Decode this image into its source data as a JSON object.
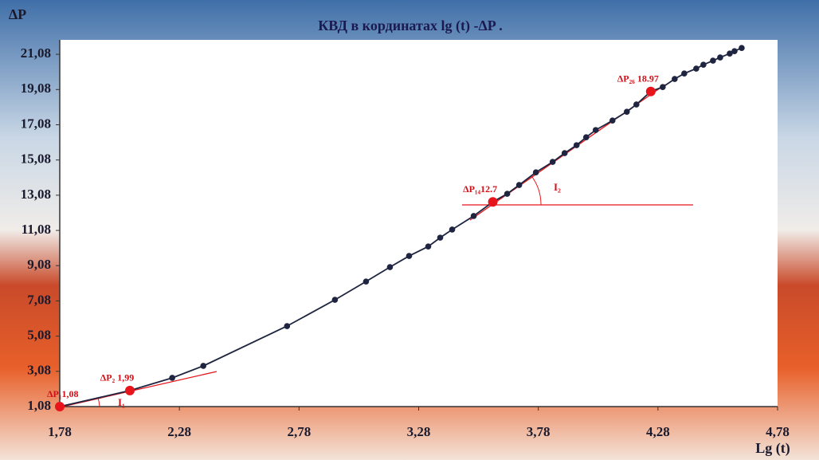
{
  "chart_data": {
    "type": "line",
    "title": "КВД в кординатах lg (t) -ΔP .",
    "y_label": "ΔP",
    "x_label": "Lg (t)",
    "x": [
      1.78,
      2.073,
      2.25,
      2.38,
      2.73,
      2.93,
      3.06,
      3.16,
      3.24,
      3.32,
      3.37,
      3.42,
      3.51,
      3.59,
      3.65,
      3.7,
      3.77,
      3.84,
      3.89,
      3.94,
      3.98,
      4.02,
      4.09,
      4.15,
      4.19,
      4.25,
      4.3,
      4.35,
      4.39,
      4.44,
      4.47,
      4.51,
      4.54,
      4.58,
      4.6,
      4.63
    ],
    "series": [
      {
        "color": "#1f2540",
        "highlight_color": "#e8141b",
        "values": [
          1.08,
          1.99,
          2.71,
          3.39,
          5.65,
          7.14,
          8.18,
          9.0,
          9.63,
          10.17,
          10.67,
          11.13,
          11.9,
          12.7,
          13.16,
          13.66,
          14.38,
          14.97,
          15.47,
          15.92,
          16.37,
          16.78,
          17.32,
          17.82,
          18.23,
          18.97,
          19.22,
          19.68,
          19.99,
          20.27,
          20.49,
          20.72,
          20.9,
          21.12,
          21.26,
          21.44
        ],
        "value_labels": [
          "ΔP₁1,08",
          "ΔP₂ 1,99",
          null,
          null,
          null,
          null,
          null,
          null,
          null,
          null,
          null,
          null,
          null,
          "ΔP₁₄12.7",
          null,
          null,
          null,
          null,
          null,
          null,
          null,
          null,
          null,
          null,
          null,
          "ΔP₂₆ 18.97",
          null,
          null,
          null,
          null,
          null,
          null,
          null,
          null,
          null,
          null
        ]
      }
    ],
    "annotations": [
      "I₁",
      "I₂"
    ],
    "xlim": [
      1.78,
      4.78
    ],
    "ylim": [
      1.08,
      21.9
    ],
    "xticks": [
      {
        "value": 1.78,
        "label": "1,78"
      },
      {
        "value": 2.28,
        "label": "2,28"
      },
      {
        "value": 2.78,
        "label": "2,78"
      },
      {
        "value": 3.28,
        "label": "3,28"
      },
      {
        "value": 3.78,
        "label": "3,78"
      },
      {
        "value": 4.28,
        "label": "4,28"
      },
      {
        "value": 4.78,
        "label": "4,78"
      }
    ],
    "yticks": [
      {
        "value": 1.08,
        "label": "1,08"
      },
      {
        "value": 3.08,
        "label": "3,08"
      },
      {
        "value": 5.08,
        "label": "5,08"
      },
      {
        "value": 7.08,
        "label": "7,08"
      },
      {
        "value": 9.08,
        "label": "9,08"
      },
      {
        "value": 11.08,
        "label": "11,08"
      },
      {
        "value": 13.08,
        "label": "13,08"
      },
      {
        "value": 15.08,
        "label": "15,08"
      },
      {
        "value": 17.08,
        "label": "17,08"
      },
      {
        "value": 19.08,
        "label": "19,08"
      },
      {
        "value": 21.08,
        "label": "21,08"
      }
    ],
    "grid": false
  }
}
